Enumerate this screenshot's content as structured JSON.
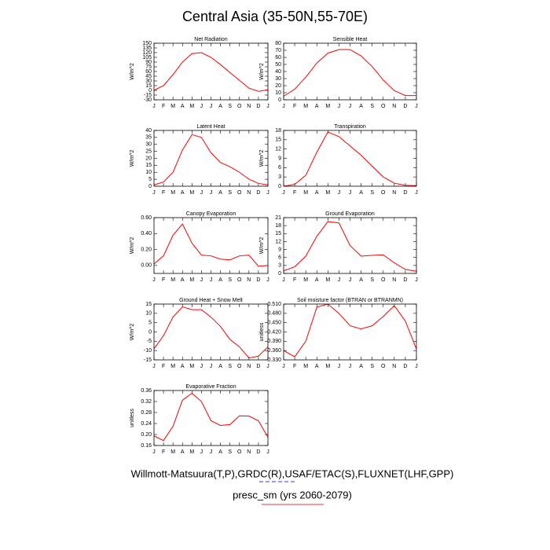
{
  "title": "Central Asia (35-50N,55-70E)",
  "footnotes": [
    "Willmott-Matsuura(T,P),GRDC(R),USAF/ETAC(S),FLUXNET(LHF,GPP)",
    "presc_sm (yrs 2060-2079)"
  ],
  "chart_data": [
    {
      "type": "line",
      "title": "Net Radiation",
      "ylabel": "W/m^2",
      "categories": [
        "J",
        "F",
        "M",
        "A",
        "M",
        "J",
        "J",
        "A",
        "S",
        "O",
        "N",
        "D",
        "J"
      ],
      "series": [
        {
          "color": "#ff0000",
          "values": [
            0,
            15,
            50,
            90,
            117,
            120,
            105,
            82,
            57,
            32,
            7,
            -3,
            2
          ]
        }
      ],
      "ylim": [
        -30,
        150
      ],
      "yticks": [
        -30,
        -15,
        0,
        15,
        30,
        45,
        60,
        75,
        90,
        105,
        120,
        135,
        150
      ]
    },
    {
      "type": "line",
      "title": "Sensible Heat",
      "ylabel": "W/m^2",
      "categories": [
        "J",
        "F",
        "M",
        "A",
        "M",
        "J",
        "J",
        "A",
        "S",
        "O",
        "N",
        "D",
        "J"
      ],
      "series": [
        {
          "color": "#ff0000",
          "values": [
            5,
            15,
            32,
            52,
            66,
            71,
            71,
            62,
            47,
            28,
            13,
            6,
            6
          ]
        }
      ],
      "ylim": [
        0,
        80
      ],
      "yticks": [
        0,
        10,
        20,
        30,
        40,
        50,
        60,
        70,
        80
      ]
    },
    {
      "type": "line",
      "title": "Latent Heat",
      "ylabel": "W/m^2",
      "categories": [
        "J",
        "F",
        "M",
        "A",
        "M",
        "J",
        "J",
        "A",
        "S",
        "O",
        "N",
        "D",
        "J"
      ],
      "series": [
        {
          "color": "#ff0000",
          "values": [
            1,
            3,
            10,
            26,
            37,
            35,
            24,
            17,
            14,
            10,
            5,
            2,
            1
          ]
        }
      ],
      "ylim": [
        0,
        40
      ],
      "yticks": [
        0,
        5,
        10,
        15,
        20,
        25,
        30,
        35,
        40
      ]
    },
    {
      "type": "line",
      "title": "Transpiration",
      "ylabel": "W/m^2",
      "categories": [
        "J",
        "F",
        "M",
        "A",
        "M",
        "J",
        "J",
        "A",
        "S",
        "O",
        "N",
        "D",
        "J"
      ],
      "series": [
        {
          "color": "#ff0000",
          "values": [
            0,
            0.6,
            3.5,
            11,
            17.5,
            16,
            13,
            10,
            6.5,
            3,
            1,
            0.3,
            0.2
          ]
        }
      ],
      "ylim": [
        0,
        18
      ],
      "yticks": [
        0,
        3,
        6,
        9,
        12,
        15,
        18
      ]
    },
    {
      "type": "line",
      "title": "Canopy Evaporation",
      "ylabel": "W/m^2",
      "categories": [
        "J",
        "F",
        "M",
        "A",
        "M",
        "J",
        "J",
        "A",
        "S",
        "O",
        "N",
        "D",
        "J"
      ],
      "series": [
        {
          "color": "#ff0000",
          "values": [
            0.02,
            0.12,
            0.38,
            0.52,
            0.28,
            0.13,
            0.12,
            0.08,
            0.07,
            0.12,
            0.13,
            -0.01,
            0.0
          ]
        }
      ],
      "ylim": [
        -0.1,
        0.6
      ],
      "yticks": [
        {
          "value": 0,
          "label": "0.00"
        },
        {
          "value": 0.2,
          "label": "0.20"
        },
        {
          "value": 0.4,
          "label": "0.40"
        },
        {
          "value": 0.6,
          "label": "0.60"
        }
      ]
    },
    {
      "type": "line",
      "title": "Ground Evaporation",
      "ylabel": "W/m^2",
      "categories": [
        "J",
        "F",
        "M",
        "A",
        "M",
        "J",
        "J",
        "A",
        "S",
        "O",
        "N",
        "D",
        "J"
      ],
      "series": [
        {
          "color": "#ff0000",
          "values": [
            1,
            2.5,
            6.5,
            14,
            19.5,
            19,
            10.5,
            6.5,
            6.8,
            7,
            4,
            1.5,
            0.8
          ]
        }
      ],
      "ylim": [
        0,
        21
      ],
      "yticks": [
        0,
        3,
        6,
        9,
        12,
        15,
        18,
        21
      ]
    },
    {
      "type": "line",
      "title": "Ground Heat + Snow Melt",
      "ylabel": "W/m^2",
      "categories": [
        "J",
        "F",
        "M",
        "A",
        "M",
        "J",
        "J",
        "A",
        "S",
        "O",
        "N",
        "D",
        "J"
      ],
      "series": [
        {
          "color": "#ff0000",
          "values": [
            -9,
            -2,
            8,
            13.5,
            12,
            12,
            8,
            3,
            -4,
            -8,
            -14,
            -13,
            -8
          ]
        }
      ],
      "ylim": [
        -15,
        15
      ],
      "yticks": [
        -15,
        -10,
        -5,
        0,
        5,
        10,
        15
      ]
    },
    {
      "type": "line",
      "title": "Soil moisture factor (BTRAN or BTRANMN)",
      "ylabel": "unitless",
      "categories": [
        "J",
        "F",
        "M",
        "A",
        "M",
        "J",
        "J",
        "A",
        "S",
        "O",
        "N",
        "D",
        "J"
      ],
      "series": [
        {
          "color": "#ff0000",
          "values": [
            0.36,
            0.34,
            0.39,
            0.5,
            0.51,
            0.48,
            0.44,
            0.43,
            0.44,
            0.47,
            0.505,
            0.455,
            0.365
          ]
        }
      ],
      "ylim": [
        0.33,
        0.51
      ],
      "yticks": [
        {
          "value": 0.33,
          "label": "0.330"
        },
        {
          "value": 0.36,
          "label": "0.360"
        },
        {
          "value": 0.39,
          "label": "0.390"
        },
        {
          "value": 0.42,
          "label": "0.420"
        },
        {
          "value": 0.45,
          "label": "0.450"
        },
        {
          "value": 0.48,
          "label": "0.480"
        },
        {
          "value": 0.51,
          "label": "0.510"
        }
      ]
    },
    {
      "type": "line",
      "title": "Evaporative Fraction",
      "ylabel": "unitless",
      "categories": [
        "J",
        "F",
        "M",
        "A",
        "M",
        "J",
        "J",
        "A",
        "S",
        "O",
        "N",
        "D",
        "J"
      ],
      "series": [
        {
          "color": "#ff0000",
          "values": [
            0.195,
            0.178,
            0.23,
            0.325,
            0.35,
            0.32,
            0.25,
            0.233,
            0.236,
            0.268,
            0.267,
            0.25,
            0.19
          ]
        }
      ],
      "ylim": [
        0.16,
        0.36
      ],
      "yticks": [
        0.16,
        {
          "value": 0.2,
          "label": "0.20"
        },
        0.24,
        0.28,
        0.32,
        0.36
      ]
    }
  ]
}
